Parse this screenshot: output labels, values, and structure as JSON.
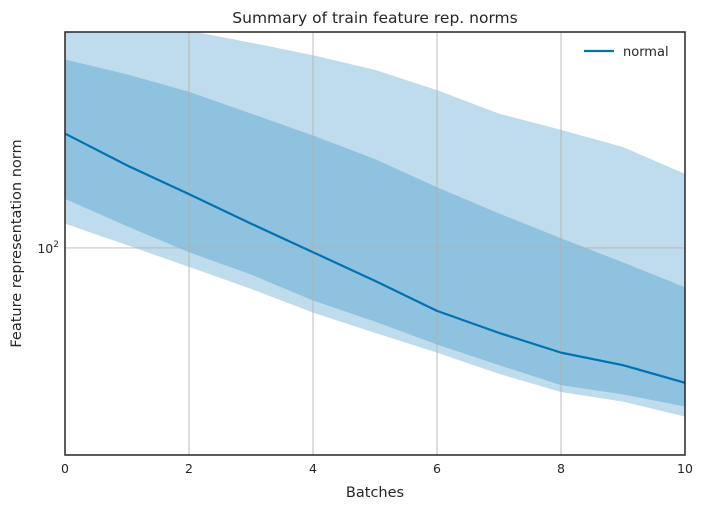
{
  "chart_data": {
    "type": "line",
    "title": "Summary of train feature rep. norms",
    "xlabel": "Batches",
    "ylabel": "Feature representation norm",
    "xlim": [
      0,
      10
    ],
    "ylim": [
      48,
      215
    ],
    "yscale": "log",
    "x_ticks": [
      0,
      2,
      4,
      6,
      8,
      10
    ],
    "x_tick_labels": [
      "0",
      "2",
      "4",
      "6",
      "8",
      "10"
    ],
    "y_ticks": [
      100
    ],
    "y_tick_base": "10",
    "y_tick_exp": "2",
    "grid": true,
    "legend": {
      "position": "top-right",
      "entries": [
        "normal"
      ]
    },
    "series": [
      {
        "name": "normal",
        "color": "#0072b2",
        "x": [
          0,
          1,
          2,
          3,
          4,
          5,
          6,
          7,
          8,
          9,
          10
        ],
        "mean": [
          150,
          134,
          121,
          109,
          98.5,
          89,
          80,
          74,
          69,
          66,
          62
        ],
        "inner_low": [
          119,
          108,
          98.5,
          91,
          83,
          77,
          71,
          66,
          61.5,
          59.5,
          57
        ],
        "inner_high": [
          195,
          185,
          174,
          161,
          149,
          137,
          124,
          113,
          103.5,
          95,
          87
        ],
        "outer_low": [
          109,
          101,
          93.5,
          86.5,
          79.5,
          74,
          69,
          64,
          60,
          58,
          55
        ],
        "outer_high": [
          235,
          226,
          216,
          207,
          198,
          188,
          175,
          161,
          152,
          143,
          130
        ]
      }
    ],
    "colors": {
      "line": "#0072b2",
      "outer_band": "#0072b2",
      "inner_band": "#0072b2",
      "grid": "#b0b0b0",
      "axes": "#262626"
    }
  }
}
